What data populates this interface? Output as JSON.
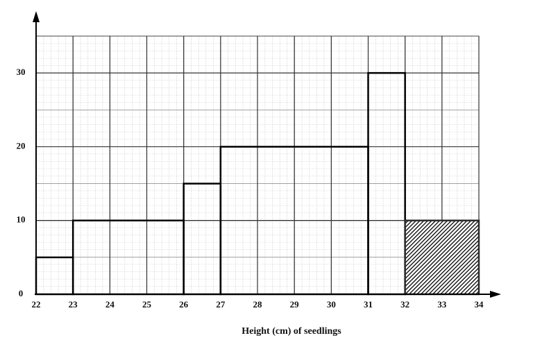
{
  "chart_data": {
    "type": "histogram",
    "x_label": "Height (cm) of seedlings",
    "bins": [
      22,
      23,
      26,
      27,
      31,
      32,
      34
    ],
    "values": [
      5,
      10,
      15,
      20,
      30,
      10
    ],
    "colors": [
      "none",
      "none",
      "none",
      "none",
      "none",
      "#2a2a2a"
    ],
    "xlim": [
      22,
      34
    ],
    "ylim": [
      0,
      35
    ],
    "xticks": [
      22,
      23,
      24,
      25,
      26,
      27,
      28,
      29,
      30,
      31,
      32,
      33,
      34
    ],
    "yticks": [
      0,
      10,
      20,
      30
    ],
    "grid": true
  }
}
